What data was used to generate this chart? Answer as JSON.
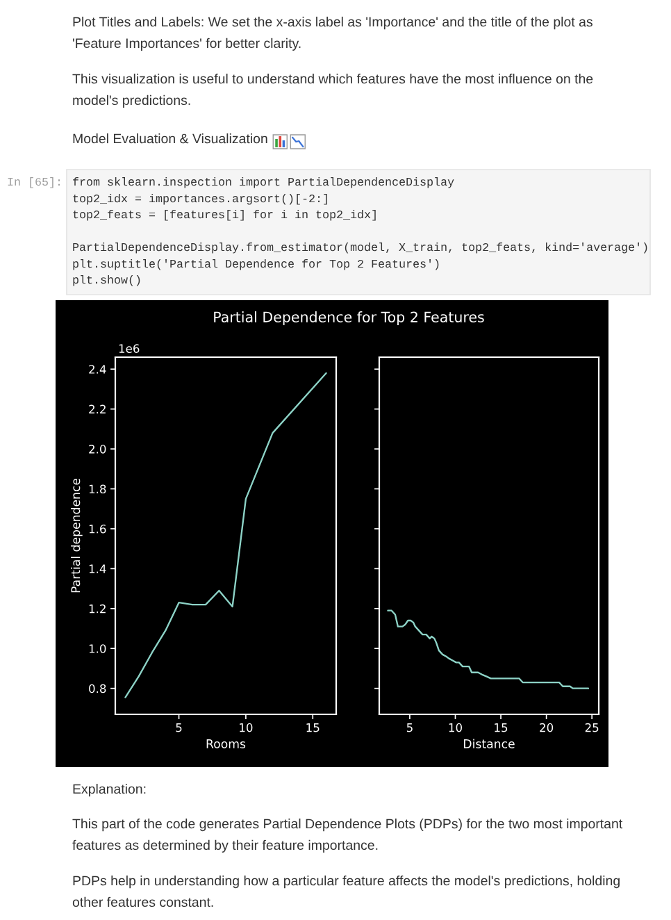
{
  "chart_data": [
    {
      "type": "line",
      "title": "Partial Dependence for Top 2 Features",
      "xlabel": "Rooms",
      "ylabel": "Partial dependence",
      "x": [
        1,
        2,
        3,
        4,
        5,
        6,
        7,
        8,
        9,
        10,
        12,
        16
      ],
      "series": [
        {
          "color": "#8dd3c7",
          "values": [
            0.755,
            0.86,
            0.98,
            1.09,
            1.23,
            1.22,
            1.22,
            1.29,
            1.21,
            1.75,
            2.08,
            2.38
          ]
        }
      ],
      "xlim": [
        0.25,
        16.75
      ],
      "ylim": [
        0.67,
        2.46
      ],
      "xticks": [
        5,
        10,
        15
      ],
      "yticks": [
        0.8,
        {
          "value": 1.0,
          "label": "1.0"
        },
        1.2,
        1.4,
        1.6,
        1.8,
        {
          "value": 2.0,
          "label": "2.0"
        },
        2.2,
        2.4
      ],
      "annotations": [
        "1e6",
        "Plot Titles and Labels: We set the x-axis label as 'Importance' and the title of the plot as 'Feature Importances' for better clarity.",
        "This visualization is useful to understand which features have the most influence on the model's predictions.",
        "Model Evaluation & Visualization",
        "In [65]:",
        "from sklearn.inspection import PartialDependenceDisplay",
        "top2_idx = importances.argsort()[-2:]",
        "top2_feats = [features[i] for i in top2_idx]",
        "PartialDependenceDisplay.from_estimator(model, X_train, top2_feats, kind='average')",
        "plt.suptitle('Partial Dependence for Top 2 Features')",
        "plt.show()",
        "Explanation:",
        "This part of the code generates Partial Dependence Plots (PDPs) for the two most important features as determined by their feature importance.",
        "PDPs help in understanding how a particular feature affects the model's predictions, holding other features constant."
      ]
    },
    {
      "type": "line",
      "xlabel": "Distance",
      "x": [
        2.6,
        3.0,
        3.4,
        3.7,
        4.2,
        4.5,
        4.8,
        5.1,
        5.4,
        5.6,
        6.0,
        6.4,
        6.8,
        7.2,
        7.4,
        7.7,
        7.9,
        8.2,
        8.6,
        9.0,
        9.3,
        9.7,
        10.1,
        10.4,
        10.8,
        11.1,
        11.5,
        11.8,
        12.1,
        12.5,
        12.9,
        13.4,
        13.9,
        14.4,
        17.0,
        17.4,
        21.4,
        21.8,
        22.6,
        22.9,
        24.6
      ],
      "series": [
        {
          "color": "#8dd3c7",
          "values": [
            1.19,
            1.19,
            1.17,
            1.11,
            1.11,
            1.12,
            1.14,
            1.14,
            1.13,
            1.11,
            1.09,
            1.07,
            1.07,
            1.05,
            1.06,
            1.05,
            1.03,
            0.99,
            0.97,
            0.96,
            0.95,
            0.94,
            0.93,
            0.93,
            0.91,
            0.91,
            0.91,
            0.88,
            0.88,
            0.88,
            0.87,
            0.86,
            0.85,
            0.85,
            0.85,
            0.83,
            0.83,
            0.81,
            0.81,
            0.8,
            0.8
          ]
        }
      ],
      "xlim": [
        1.65,
        25.75
      ],
      "ylim": [
        0.67,
        2.46
      ],
      "xticks": [
        5,
        10,
        15,
        20,
        25
      ],
      "yticks": [
        0.8,
        1.0,
        1.2,
        1.4,
        1.6,
        1.8,
        2.0,
        2.2,
        2.4
      ],
      "tick_labels": "x"
    }
  ]
}
